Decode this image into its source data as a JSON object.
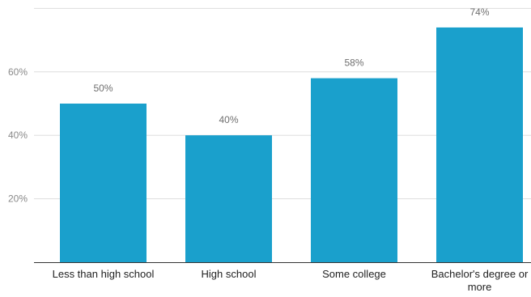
{
  "chart_data": {
    "type": "bar",
    "categories": [
      "Less than high school",
      "High school",
      "Some college",
      "Bachelor's degree or more"
    ],
    "category_lines": [
      [
        "Less than high school"
      ],
      [
        "High school"
      ],
      [
        "Some college"
      ],
      [
        "Bachelor's degree or",
        "more"
      ]
    ],
    "values": [
      50,
      40,
      58,
      74
    ],
    "data_labels": [
      "50%",
      "40%",
      "58%",
      "74%"
    ],
    "yticks": [
      20,
      40,
      60
    ],
    "ytick_labels": [
      "20%",
      "40%",
      "60%"
    ],
    "ylim": [
      0,
      80
    ],
    "grid": true,
    "bar_color": "#1aa0cc",
    "title": "",
    "xlabel": "",
    "ylabel": ""
  }
}
